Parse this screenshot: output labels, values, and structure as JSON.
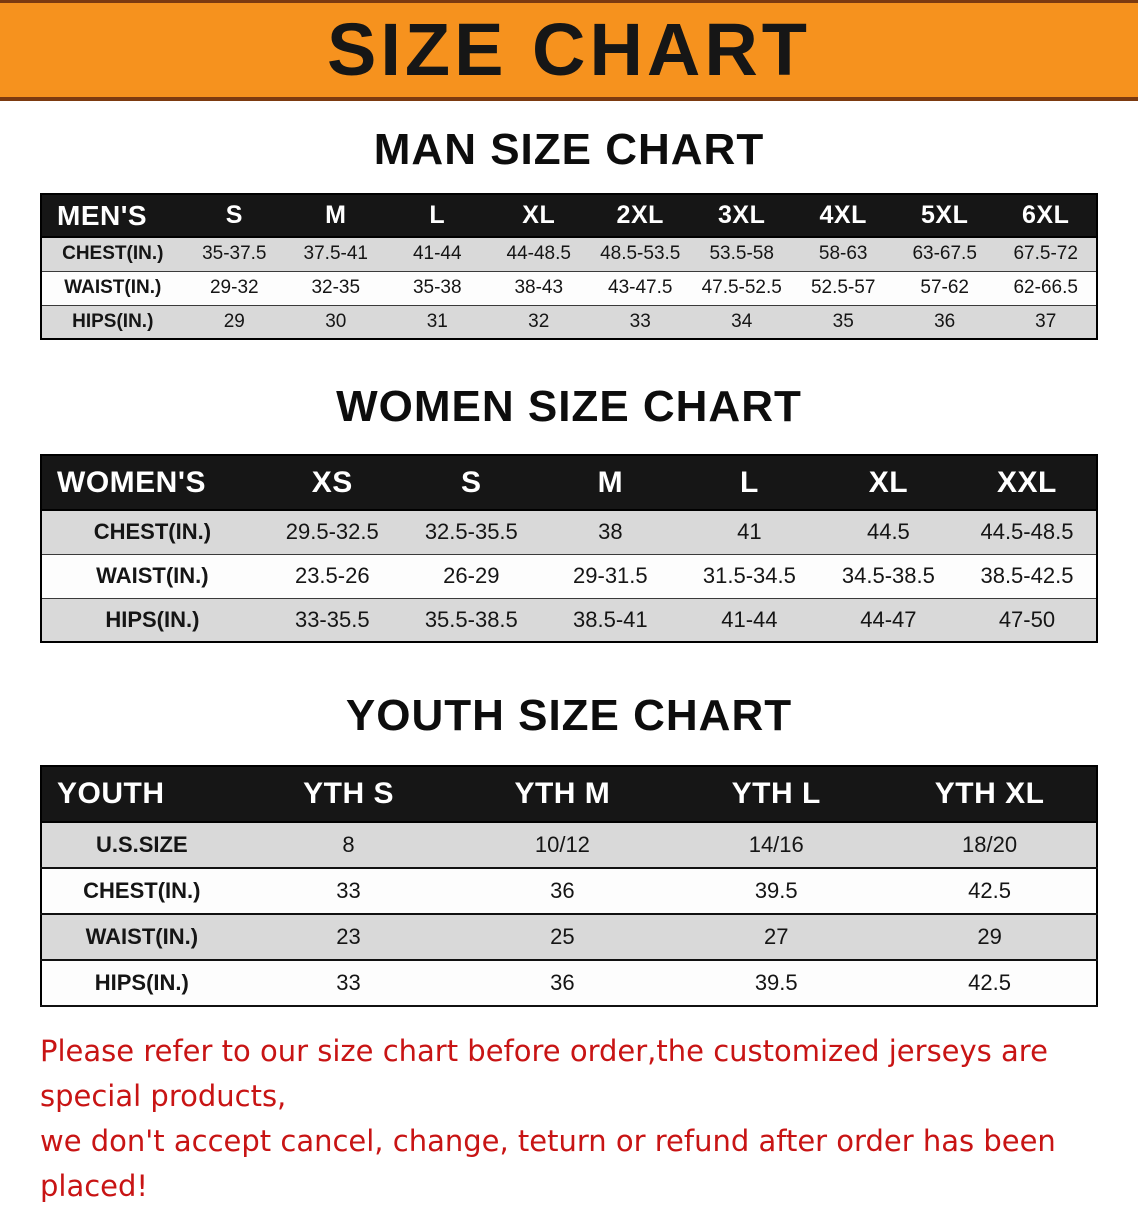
{
  "banner": {
    "title": "SIZE CHART"
  },
  "sections": [
    {
      "heading": "MAN SIZE CHART",
      "table": {
        "header": [
          "MEN'S",
          "S",
          "M",
          "L",
          "XL",
          "2XL",
          "3XL",
          "4XL",
          "5XL",
          "6XL"
        ],
        "rows": [
          [
            "CHEST(IN.)",
            "35-37.5",
            "37.5-41",
            "41-44",
            "44-48.5",
            "48.5-53.5",
            "53.5-58",
            "58-63",
            "63-67.5",
            "67.5-72"
          ],
          [
            "WAIST(IN.)",
            "29-32",
            "32-35",
            "35-38",
            "38-43",
            "43-47.5",
            "47.5-52.5",
            "52.5-57",
            "57-62",
            "62-66.5"
          ],
          [
            "HIPS(IN.)",
            "29",
            "30",
            "31",
            "32",
            "33",
            "34",
            "35",
            "36",
            "37"
          ]
        ]
      }
    },
    {
      "heading": "WOMEN SIZE CHART",
      "table": {
        "header": [
          "WOMEN'S",
          "XS",
          "S",
          "M",
          "L",
          "XL",
          "XXL"
        ],
        "rows": [
          [
            "CHEST(IN.)",
            "29.5-32.5",
            "32.5-35.5",
            "38",
            "41",
            "44.5",
            "44.5-48.5"
          ],
          [
            "WAIST(IN.)",
            "23.5-26",
            "26-29",
            "29-31.5",
            "31.5-34.5",
            "34.5-38.5",
            "38.5-42.5"
          ],
          [
            "HIPS(IN.)",
            "33-35.5",
            "35.5-38.5",
            "38.5-41",
            "41-44",
            "44-47",
            "47-50"
          ]
        ]
      }
    },
    {
      "heading": "YOUTH SIZE CHART",
      "table": {
        "header": [
          "YOUTH",
          "YTH S",
          "YTH M",
          "YTH L",
          "YTH XL"
        ],
        "rows": [
          [
            "U.S.SIZE",
            "8",
            "10/12",
            "14/16",
            "18/20"
          ],
          [
            "CHEST(IN.)",
            "33",
            "36",
            "39.5",
            "42.5"
          ],
          [
            "WAIST(IN.)",
            "23",
            "25",
            "27",
            "29"
          ],
          [
            "HIPS(IN.)",
            "33",
            "36",
            "39.5",
            "42.5"
          ]
        ]
      }
    }
  ],
  "footer": {
    "line1": "Please refer to our size chart before order,the customized jerseys are special products,",
    "line2": "we don't accept cancel, change, teturn or refund after order has been placed!"
  },
  "colors": {
    "banner_bg": "#f6921e",
    "banner_edge": "#7c3a10",
    "header_bg": "#161616",
    "stripe": "#d9d9d9",
    "notice_red": "#c81414"
  }
}
